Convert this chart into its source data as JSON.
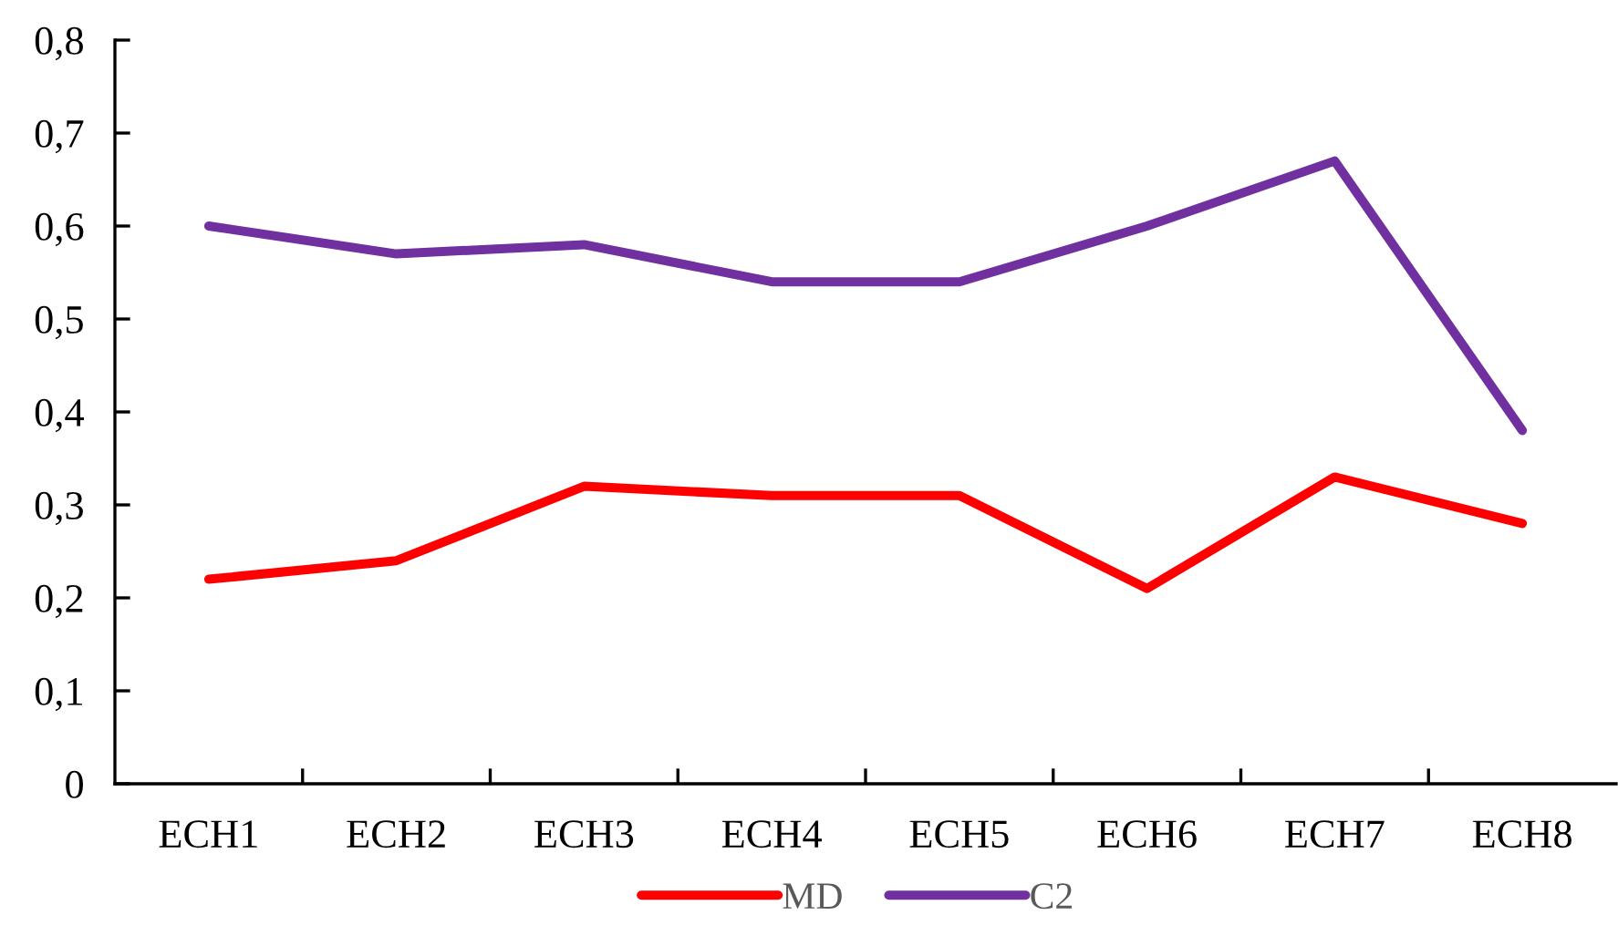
{
  "chart_data": {
    "type": "line",
    "categories": [
      "ECH1",
      "ECH2",
      "ECH3",
      "ECH4",
      "ECH5",
      "ECH6",
      "ECH7",
      "ECH8"
    ],
    "series": [
      {
        "name": "MD",
        "color": "#ff0000",
        "values": [
          0.22,
          0.24,
          0.32,
          0.31,
          0.31,
          0.21,
          0.33,
          0.28
        ]
      },
      {
        "name": "C2",
        "color": "#7030a0",
        "values": [
          0.6,
          0.57,
          0.58,
          0.54,
          0.54,
          0.6,
          0.67,
          0.38
        ]
      }
    ],
    "ylim": [
      0,
      0.8
    ],
    "yticks": [
      0,
      {
        "value": 0.1,
        "label": "0,1"
      },
      {
        "value": 0.2,
        "label": "0,2"
      },
      {
        "value": 0.3,
        "label": "0,3"
      },
      {
        "value": 0.4,
        "label": "0,4"
      },
      {
        "value": 0.5,
        "label": "0,5"
      },
      {
        "value": 0.6,
        "label": "0,6"
      },
      {
        "value": 0.7,
        "label": "0,7"
      },
      {
        "value": 0.8,
        "label": "0,8"
      }
    ],
    "grid": false,
    "legend": "bottom",
    "marker": "none",
    "line_style": "solid"
  }
}
